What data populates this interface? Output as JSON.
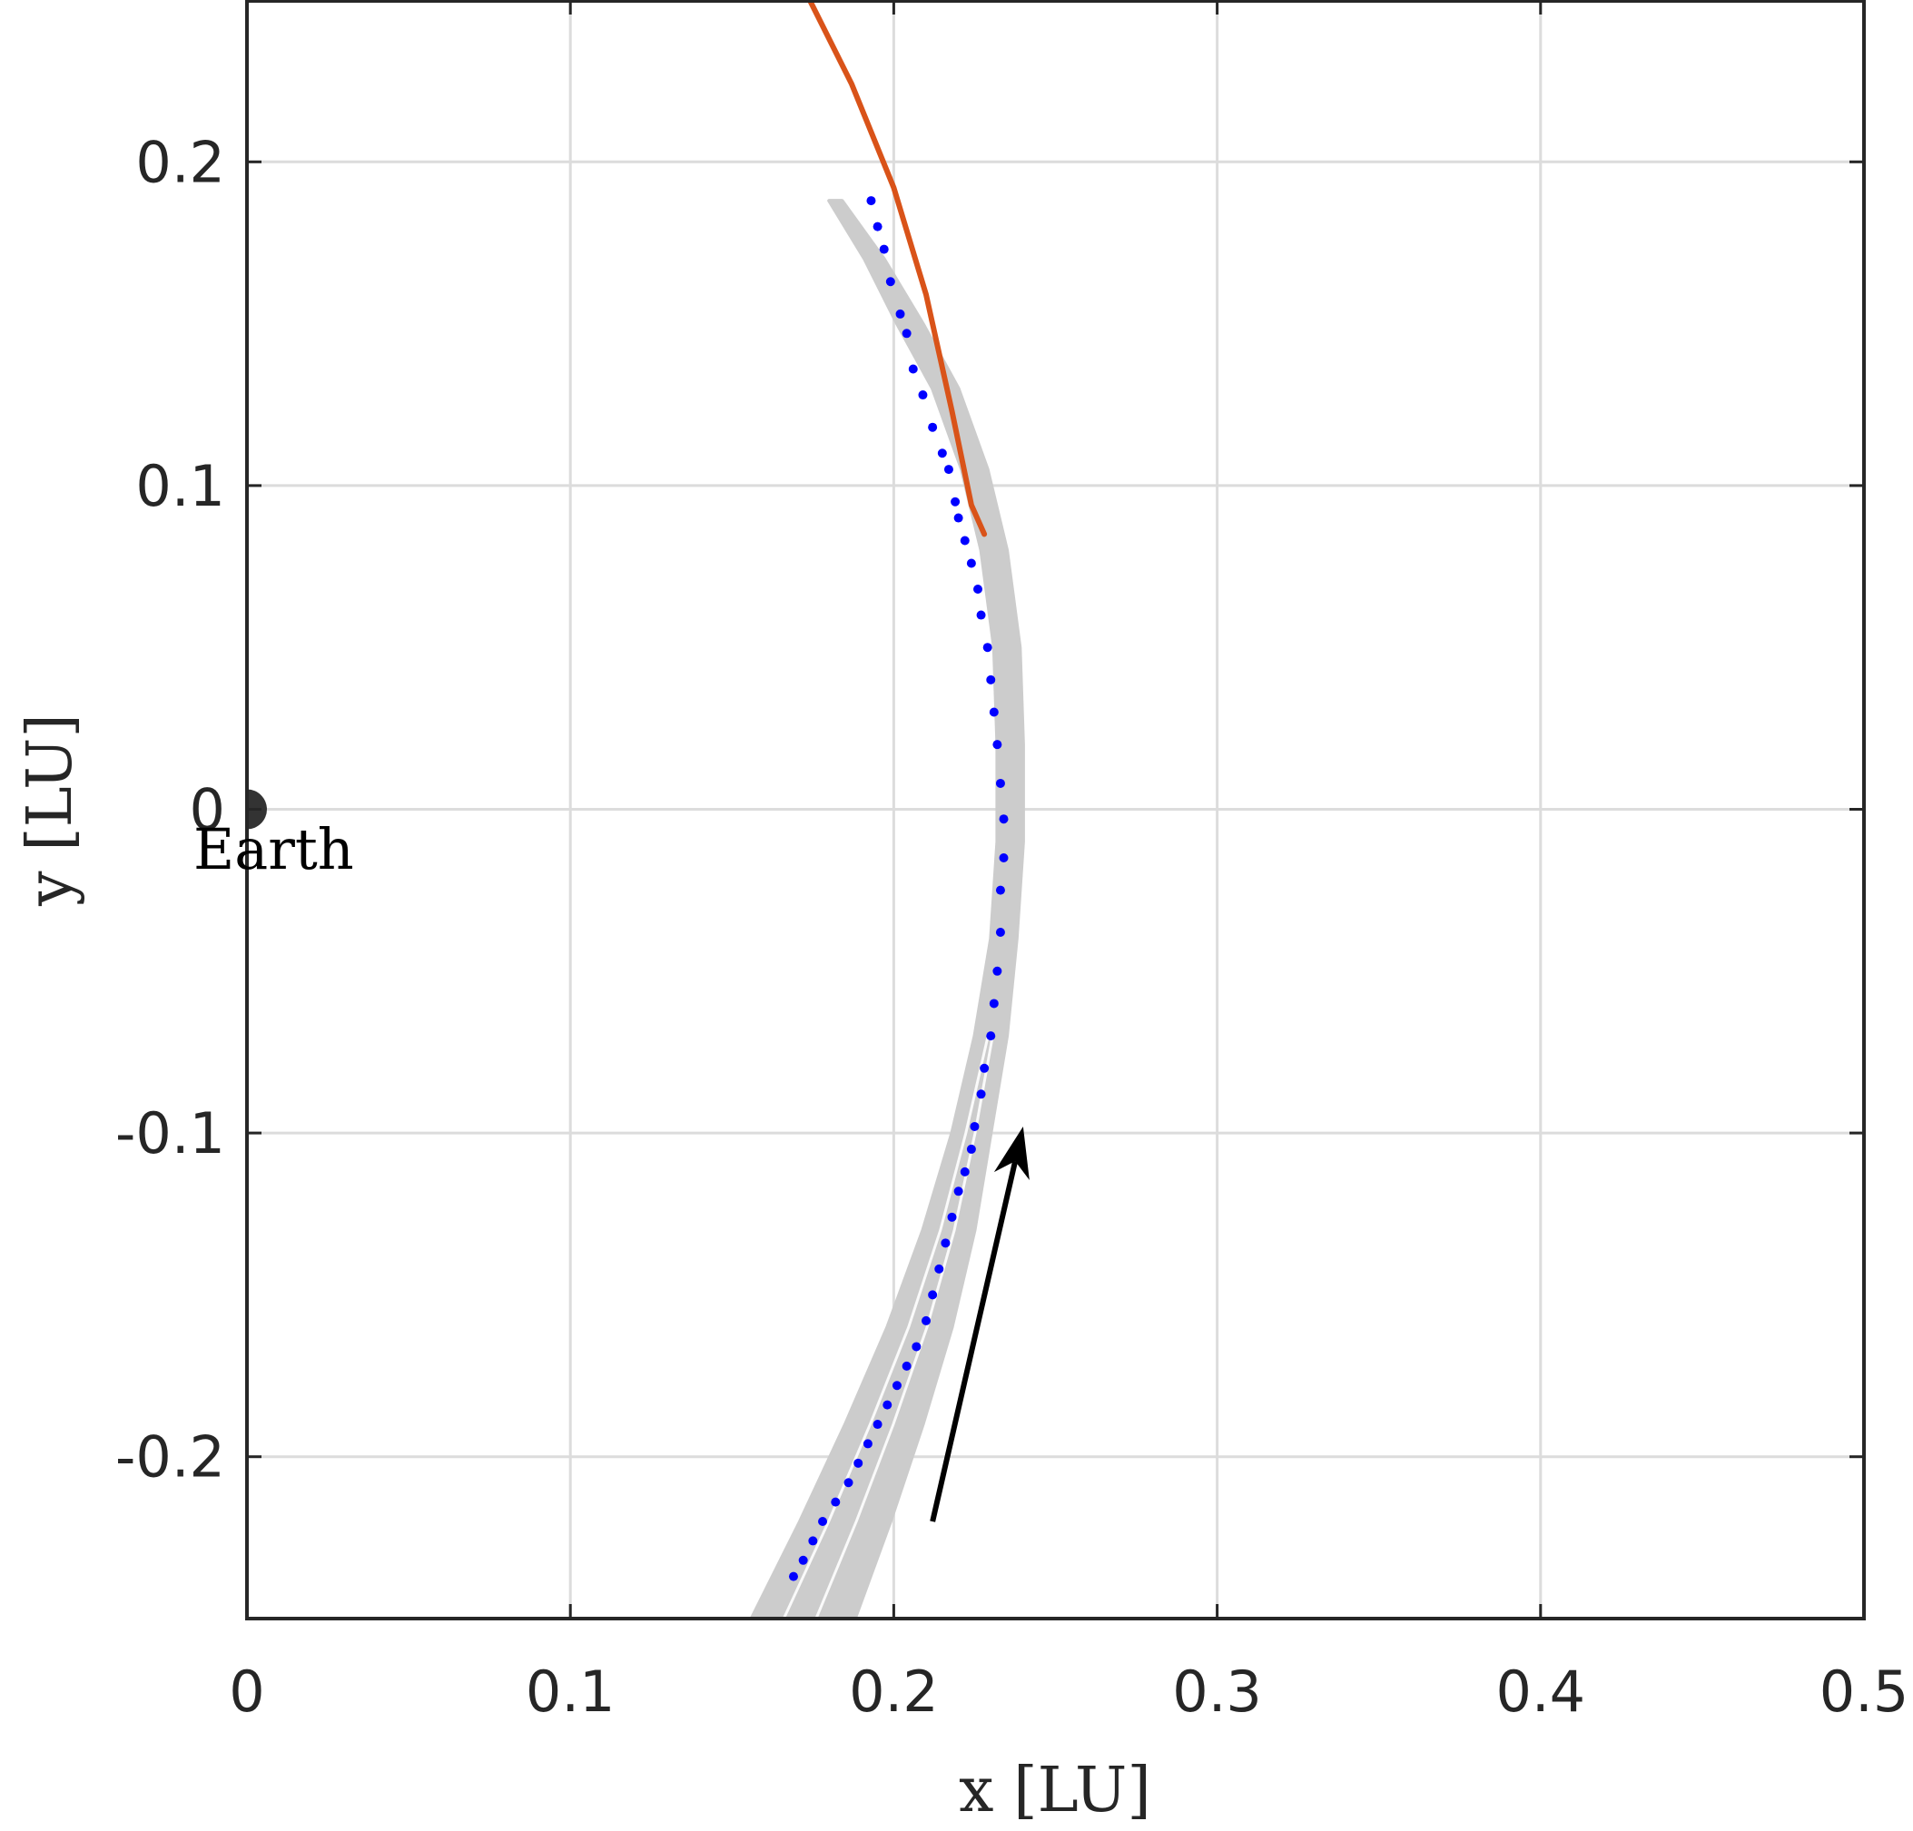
{
  "chart_data": {
    "type": "line",
    "xlabel": "x [LU]",
    "ylabel": "y [LU]",
    "xlim": [
      0,
      0.5
    ],
    "ylim": [
      -0.25,
      0.25
    ],
    "xticks": [
      "0",
      "0.1",
      "0.2",
      "0.3",
      "0.4",
      "0.5"
    ],
    "yticks": [
      "-0.2",
      "-0.1",
      "0",
      "0.1",
      "0.2"
    ],
    "grid": true,
    "annotations": [
      {
        "text": "Earth",
        "x": 0,
        "y": 0
      }
    ],
    "colors": {
      "reference_orbit": "#d95319",
      "trajectory_bundle": "#cccccc",
      "samples": "#0000ff",
      "arrow": "#000000",
      "earth": "#333333"
    },
    "reference_orbit": {
      "x": [
        0.174,
        0.187,
        0.2,
        0.21,
        0.218,
        0.224,
        0.228
      ],
      "y": [
        0.25,
        0.224,
        0.192,
        0.159,
        0.123,
        0.094,
        0.085
      ]
    },
    "trajectory_bundle": {
      "center_x": [
        0.172,
        0.185,
        0.197,
        0.208,
        0.217,
        0.224,
        0.23,
        0.234,
        0.236,
        0.236,
        0.235,
        0.231,
        0.225,
        0.216,
        0.205,
        0.194,
        0.182
      ],
      "center_y": [
        -0.25,
        -0.22,
        -0.19,
        -0.16,
        -0.13,
        -0.1,
        -0.07,
        -0.04,
        -0.01,
        0.02,
        0.05,
        0.08,
        0.105,
        0.13,
        0.15,
        0.17,
        0.188
      ],
      "half_width": [
        0.016,
        0.014,
        0.012,
        0.01,
        0.008,
        0.006,
        0.005,
        0.004,
        0.004,
        0.004,
        0.004,
        0.004,
        0.004,
        0.004,
        0.004,
        0.003,
        0.002
      ]
    },
    "samples": {
      "x": [
        0.193,
        0.195,
        0.197,
        0.199,
        0.202,
        0.204,
        0.206,
        0.209,
        0.212,
        0.215,
        0.217,
        0.219,
        0.22,
        0.222,
        0.224,
        0.226,
        0.227,
        0.229,
        0.23,
        0.231,
        0.232,
        0.233,
        0.234,
        0.234,
        0.233,
        0.233,
        0.232,
        0.231,
        0.23,
        0.228,
        0.227,
        0.225,
        0.224,
        0.222,
        0.22,
        0.218,
        0.216,
        0.214,
        0.212,
        0.21,
        0.207,
        0.204,
        0.201,
        0.198,
        0.195,
        0.192,
        0.189,
        0.186,
        0.182,
        0.178,
        0.175,
        0.172,
        0.169
      ],
      "y": [
        0.188,
        0.18,
        0.173,
        0.163,
        0.153,
        0.147,
        0.136,
        0.128,
        0.118,
        0.11,
        0.105,
        0.095,
        0.09,
        0.083,
        0.076,
        0.068,
        0.06,
        0.05,
        0.04,
        0.03,
        0.02,
        0.008,
        -0.003,
        -0.015,
        -0.025,
        -0.038,
        -0.05,
        -0.06,
        -0.07,
        -0.08,
        -0.088,
        -0.098,
        -0.105,
        -0.112,
        -0.118,
        -0.126,
        -0.134,
        -0.142,
        -0.15,
        -0.158,
        -0.166,
        -0.172,
        -0.178,
        -0.184,
        -0.19,
        -0.196,
        -0.202,
        -0.208,
        -0.214,
        -0.22,
        -0.226,
        -0.232,
        -0.237
      ]
    },
    "arrow": {
      "from": [
        0.212,
        -0.22
      ],
      "to": [
        0.24,
        -0.098
      ]
    }
  }
}
